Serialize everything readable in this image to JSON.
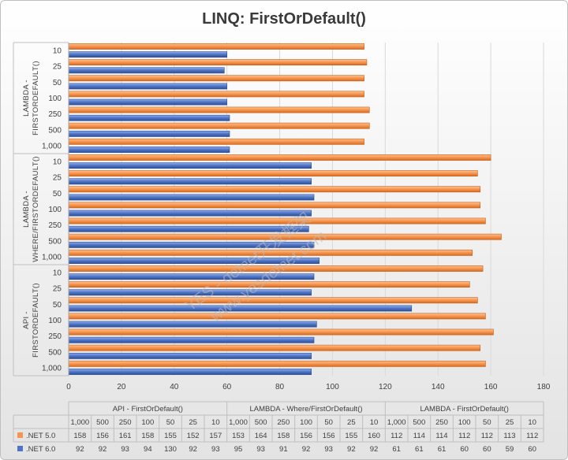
{
  "chart_data": {
    "type": "bar",
    "orientation": "horizontal",
    "title": "LINQ: FirstOrDefault()",
    "xlabel": "",
    "ylabel": "",
    "xlim": [
      0,
      180
    ],
    "x_ticks": [
      0,
      20,
      40,
      60,
      80,
      100,
      120,
      140,
      160,
      180
    ],
    "grid": true,
    "legend_position": "data-table",
    "groups": [
      {
        "name": "API - FirstOrDefault()",
        "axis_label": "API - FIRSTORDEFAULT()"
      },
      {
        "name": "LAMBDA - Where/FirstOrDefault()",
        "axis_label": "LAMBDA - WHERE/FIRSTORDEFAULT()"
      },
      {
        "name": "LAMBDA - FirstOrDefault()",
        "axis_label": "LAMBDA - FIRSTORDEFAULT()"
      }
    ],
    "categories": [
      "1,000",
      "500",
      "250",
      "100",
      "50",
      "25",
      "10"
    ],
    "series": [
      {
        "name": ".NET 5.0",
        "color": "#f5954f",
        "values": [
          [
            158,
            156,
            161,
            158,
            155,
            152,
            157
          ],
          [
            153,
            164,
            158,
            156,
            156,
            155,
            160
          ],
          [
            112,
            114,
            114,
            112,
            112,
            113,
            112
          ]
        ]
      },
      {
        "name": ".NET 6.0",
        "color": "#4f74c6",
        "values": [
          [
            92,
            92,
            93,
            94,
            130,
            92,
            93
          ],
          [
            95,
            93,
            91,
            92,
            93,
            92,
            92
          ],
          [
            61,
            61,
            61,
            60,
            60,
            59,
            60
          ]
        ]
      }
    ]
  },
  "watermark": [
    "YES - dotnet开发框架",
    "www.yesdotnet.com"
  ]
}
